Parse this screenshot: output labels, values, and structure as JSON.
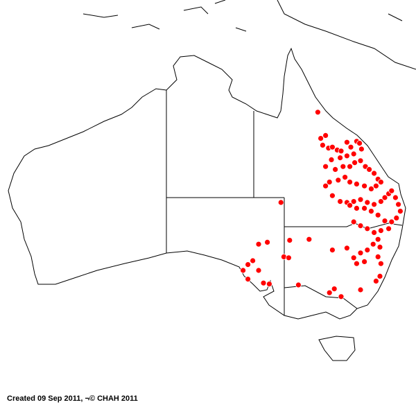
{
  "caption": "Created 09 Sep 2011, ¬© CHAH 2011",
  "map": {
    "region": "Australia",
    "dot_color": "#ff0000",
    "points": [
      [
        144.6,
        -17.2
      ],
      [
        144.9,
        -19.9
      ],
      [
        145.4,
        -19.6
      ],
      [
        145.1,
        -20.6
      ],
      [
        145.7,
        -20.9
      ],
      [
        146.1,
        -20.8
      ],
      [
        146.6,
        -21.1
      ],
      [
        147.0,
        -21.2
      ],
      [
        147.6,
        -20.3
      ],
      [
        148.0,
        -20.8
      ],
      [
        148.6,
        -20.2
      ],
      [
        148.9,
        -20.4
      ],
      [
        149.1,
        -21.0
      ],
      [
        148.3,
        -21.5
      ],
      [
        147.6,
        -21.7
      ],
      [
        146.9,
        -21.9
      ],
      [
        146.0,
        -22.1
      ],
      [
        145.4,
        -22.8
      ],
      [
        146.4,
        -23.1
      ],
      [
        147.2,
        -22.8
      ],
      [
        147.9,
        -22.8
      ],
      [
        148.4,
        -22.4
      ],
      [
        149.0,
        -22.2
      ],
      [
        149.5,
        -22.8
      ],
      [
        149.9,
        -23.1
      ],
      [
        150.4,
        -23.5
      ],
      [
        150.8,
        -24.1
      ],
      [
        151.1,
        -24.4
      ],
      [
        150.6,
        -24.8
      ],
      [
        150.1,
        -25.1
      ],
      [
        149.4,
        -24.8
      ],
      [
        148.6,
        -24.6
      ],
      [
        147.9,
        -24.4
      ],
      [
        147.4,
        -23.9
      ],
      [
        146.7,
        -24.2
      ],
      [
        145.8,
        -24.4
      ],
      [
        145.4,
        -24.8
      ],
      [
        146.1,
        -25.8
      ],
      [
        146.9,
        -26.4
      ],
      [
        147.6,
        -26.5
      ],
      [
        148.3,
        -26.4
      ],
      [
        149.0,
        -26.2
      ],
      [
        149.7,
        -26.5
      ],
      [
        150.4,
        -26.7
      ],
      [
        151.1,
        -26.4
      ],
      [
        151.5,
        -26.0
      ],
      [
        151.9,
        -25.6
      ],
      [
        152.2,
        -25.3
      ],
      [
        152.6,
        -26.0
      ],
      [
        152.9,
        -26.7
      ],
      [
        153.1,
        -27.4
      ],
      [
        152.7,
        -28.1
      ],
      [
        152.2,
        -28.5
      ],
      [
        151.5,
        -28.4
      ],
      [
        150.8,
        -27.8
      ],
      [
        150.1,
        -27.4
      ],
      [
        149.4,
        -27.1
      ],
      [
        148.6,
        -27.1
      ],
      [
        147.9,
        -26.8
      ],
      [
        148.3,
        -28.5
      ],
      [
        149.0,
        -28.9
      ],
      [
        149.7,
        -29.2
      ],
      [
        150.4,
        -29.6
      ],
      [
        151.1,
        -29.4
      ],
      [
        151.9,
        -29.2
      ],
      [
        150.8,
        -30.3
      ],
      [
        150.3,
        -30.8
      ],
      [
        151.0,
        -31.1
      ],
      [
        149.7,
        -31.4
      ],
      [
        149.0,
        -31.7
      ],
      [
        148.3,
        -32.2
      ],
      [
        147.6,
        -31.2
      ],
      [
        146.1,
        -31.4
      ],
      [
        148.6,
        -32.8
      ],
      [
        149.4,
        -32.6
      ],
      [
        150.8,
        -32.1
      ],
      [
        151.1,
        -32.8
      ],
      [
        151.0,
        -34.1
      ],
      [
        150.6,
        -34.6
      ],
      [
        149.0,
        -35.5
      ],
      [
        146.3,
        -35.4
      ],
      [
        145.8,
        -35.8
      ],
      [
        147.0,
        -36.2
      ],
      [
        142.6,
        -35.0
      ],
      [
        140.8,
        -26.5
      ],
      [
        139.4,
        -30.6
      ],
      [
        138.5,
        -30.8
      ],
      [
        137.9,
        -32.5
      ],
      [
        137.4,
        -32.9
      ],
      [
        136.9,
        -33.5
      ],
      [
        137.4,
        -34.4
      ],
      [
        138.5,
        -33.5
      ],
      [
        139.0,
        -34.8
      ],
      [
        139.6,
        -34.9
      ],
      [
        141.1,
        -32.1
      ],
      [
        141.6,
        -32.2
      ],
      [
        143.7,
        -30.3
      ],
      [
        141.7,
        -30.4
      ]
    ]
  }
}
